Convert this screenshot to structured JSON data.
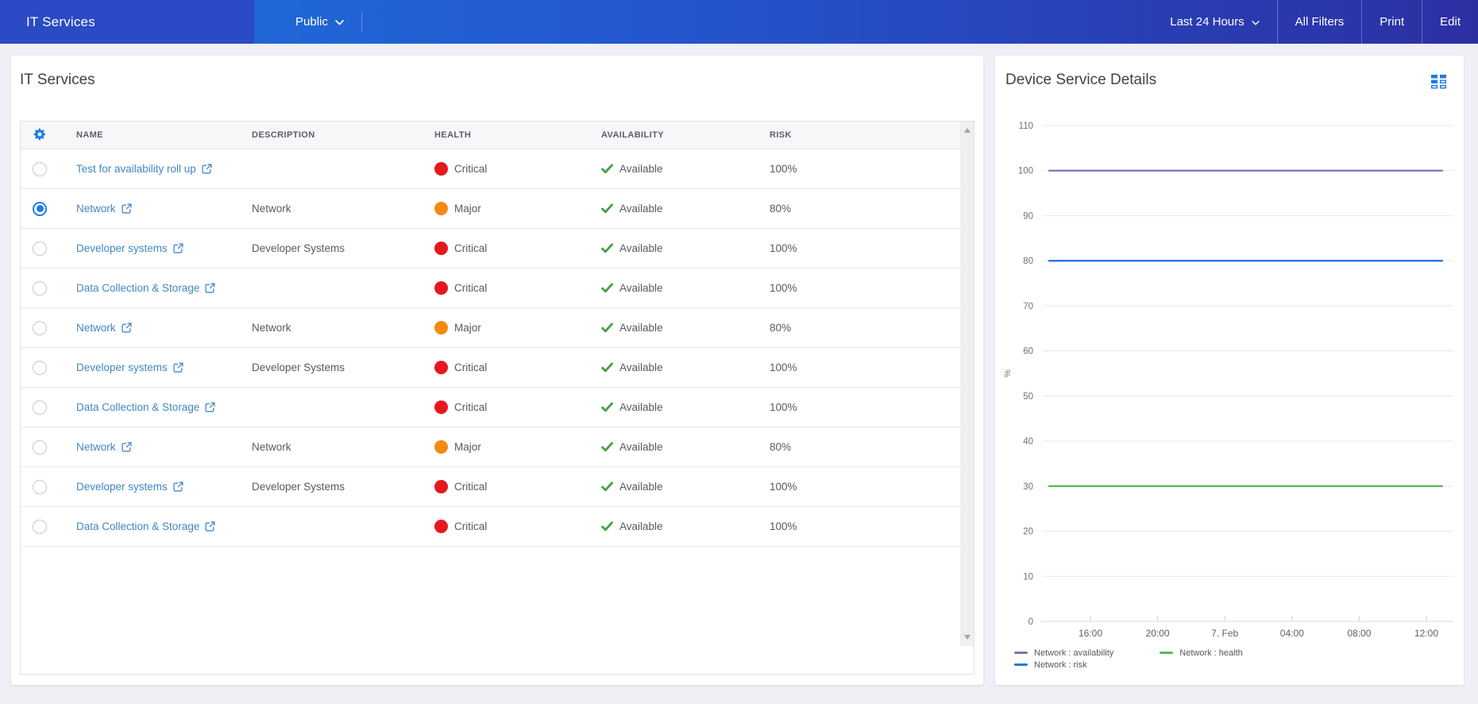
{
  "topbar": {
    "title": "IT Services",
    "dashboard_selector": "Public",
    "time_range": "Last 24 Hours",
    "all_filters_label": "All Filters",
    "print_label": "Print",
    "edit_label": "Edit"
  },
  "services_panel": {
    "title": "IT Services",
    "columns": [
      "NAME",
      "DESCRIPTION",
      "HEALTH",
      "AVAILABILITY",
      "RISK"
    ],
    "rows": [
      {
        "name": "Test for availability roll up",
        "description": "",
        "health": "Critical",
        "health_color": "#e8171e",
        "availability": "Available",
        "risk": "100%",
        "selected": false
      },
      {
        "name": "Network",
        "description": "Network",
        "health": "Major",
        "health_color": "#f68a10",
        "availability": "Available",
        "risk": "80%",
        "selected": true
      },
      {
        "name": "Developer systems",
        "description": "Developer Systems",
        "health": "Critical",
        "health_color": "#e8171e",
        "availability": "Available",
        "risk": "100%",
        "selected": false
      },
      {
        "name": "Data Collection & Storage",
        "description": "",
        "health": "Critical",
        "health_color": "#e8171e",
        "availability": "Available",
        "risk": "100%",
        "selected": false
      },
      {
        "name": "Network",
        "description": "Network",
        "health": "Major",
        "health_color": "#f68a10",
        "availability": "Available",
        "risk": "80%",
        "selected": false
      },
      {
        "name": "Developer systems",
        "description": "Developer Systems",
        "health": "Critical",
        "health_color": "#e8171e",
        "availability": "Available",
        "risk": "100%",
        "selected": false
      },
      {
        "name": "Data Collection & Storage",
        "description": "",
        "health": "Critical",
        "health_color": "#e8171e",
        "availability": "Available",
        "risk": "100%",
        "selected": false
      },
      {
        "name": "Network",
        "description": "Network",
        "health": "Major",
        "health_color": "#f68a10",
        "availability": "Available",
        "risk": "80%",
        "selected": false
      },
      {
        "name": "Developer systems",
        "description": "Developer Systems",
        "health": "Critical",
        "health_color": "#e8171e",
        "availability": "Available",
        "risk": "100%",
        "selected": false
      },
      {
        "name": "Data Collection & Storage",
        "description": "",
        "health": "Critical",
        "health_color": "#e8171e",
        "availability": "Available",
        "risk": "100%",
        "selected": false
      }
    ]
  },
  "details_panel": {
    "title": "Device Service Details"
  },
  "chart_data": {
    "type": "line",
    "title": "Device Service Details",
    "xlabel": "",
    "ylabel": "%",
    "ylim": [
      0,
      110
    ],
    "ytick_step": 10,
    "grid": true,
    "legend_position": "bottom",
    "x_ticklabels": [
      "16:00",
      "20:00",
      "7. Feb",
      "04:00",
      "08:00",
      "12:00"
    ],
    "series": [
      {
        "name": "Network : availability",
        "value": 100,
        "color": "#8273b2"
      },
      {
        "name": "Network : risk",
        "value": 80,
        "color": "#2079e2"
      },
      {
        "name": "Network : health",
        "value": 30,
        "color": "#5cb860"
      }
    ]
  },
  "colors": {
    "accent_blue": "#1b7ce0",
    "link_blue": "#4187c9",
    "critical_red": "#e8171e",
    "major_orange": "#f68a10",
    "available_green": "#3fa142",
    "topbar_left": "#2b4ac5"
  }
}
